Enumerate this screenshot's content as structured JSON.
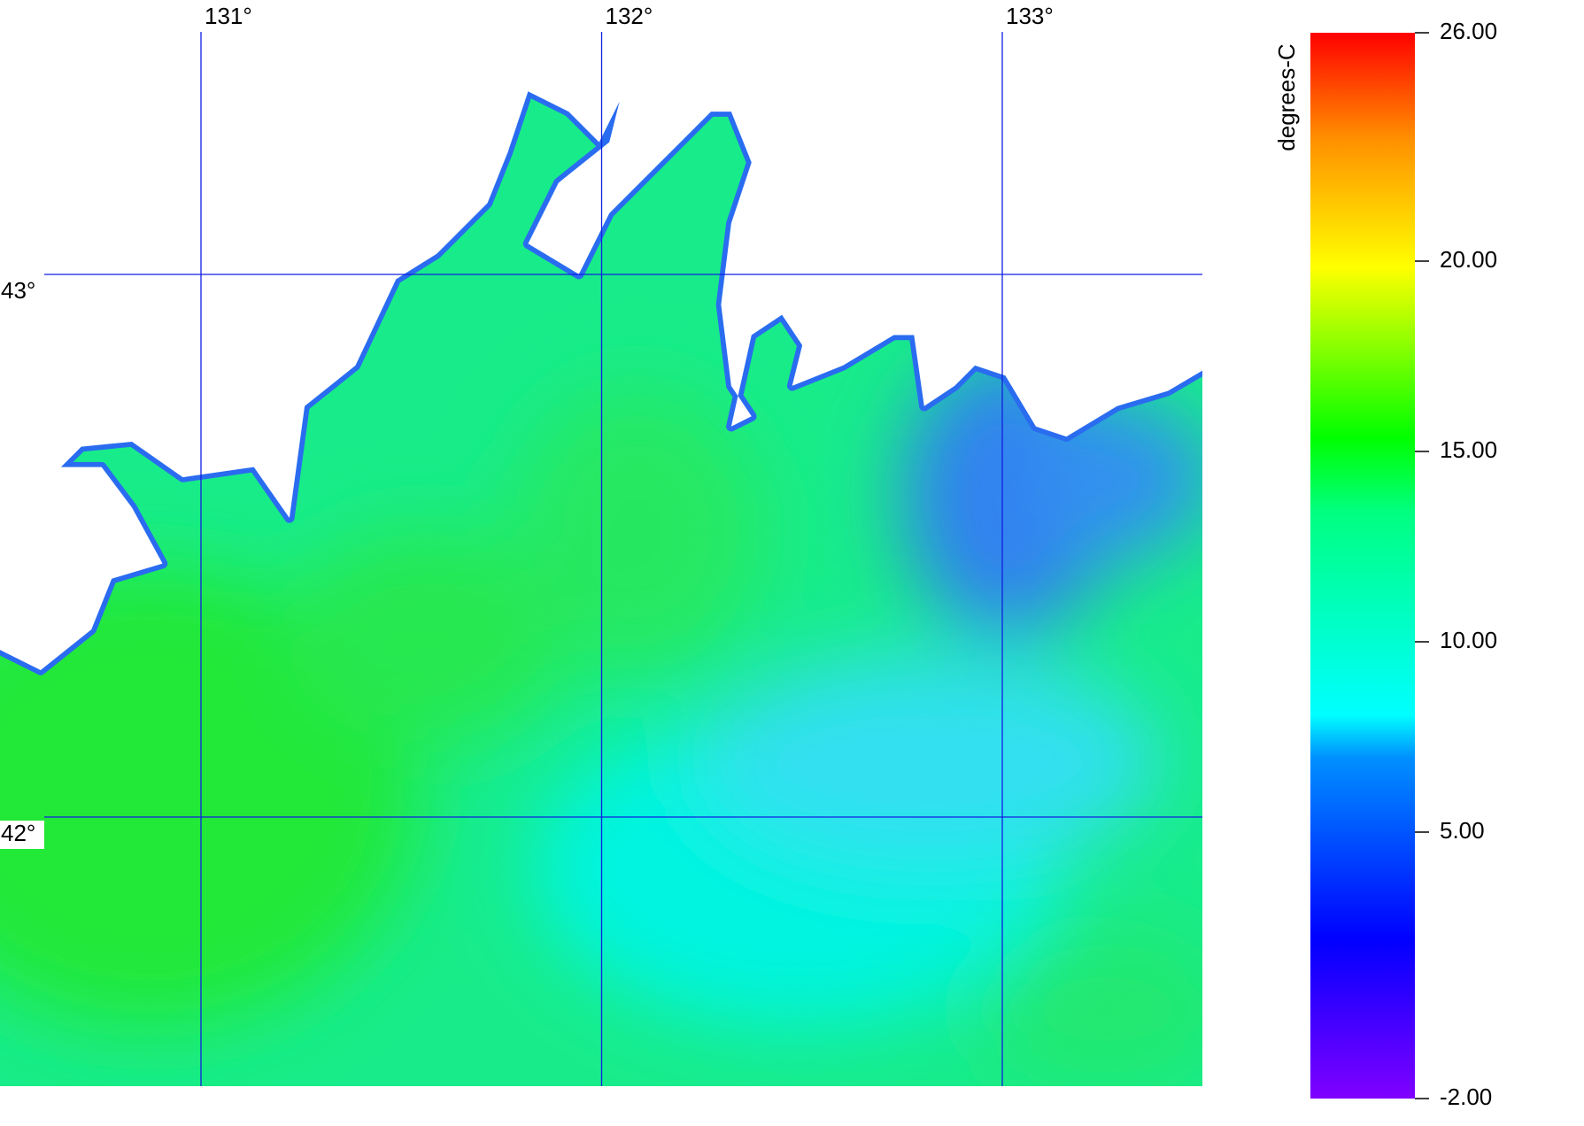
{
  "map": {
    "meridians": [
      {
        "value": 131,
        "label": "131°"
      },
      {
        "value": 132,
        "label": "132°"
      },
      {
        "value": 133,
        "label": "133°"
      }
    ],
    "parallels": [
      {
        "value": 43,
        "label": "43°"
      },
      {
        "value": 42,
        "label": "42°"
      }
    ],
    "colorbar": {
      "title": "degrees-C",
      "range": [
        -2,
        26
      ],
      "ticks": [
        {
          "value": 26,
          "label": "26.00"
        },
        {
          "value": 20,
          "label": "20.00"
        },
        {
          "value": 15,
          "label": "15.00"
        },
        {
          "value": 10,
          "label": "10.00"
        },
        {
          "value": 5,
          "label": "5.00"
        },
        {
          "value": -2,
          "label": "-2.00"
        }
      ]
    }
  }
}
